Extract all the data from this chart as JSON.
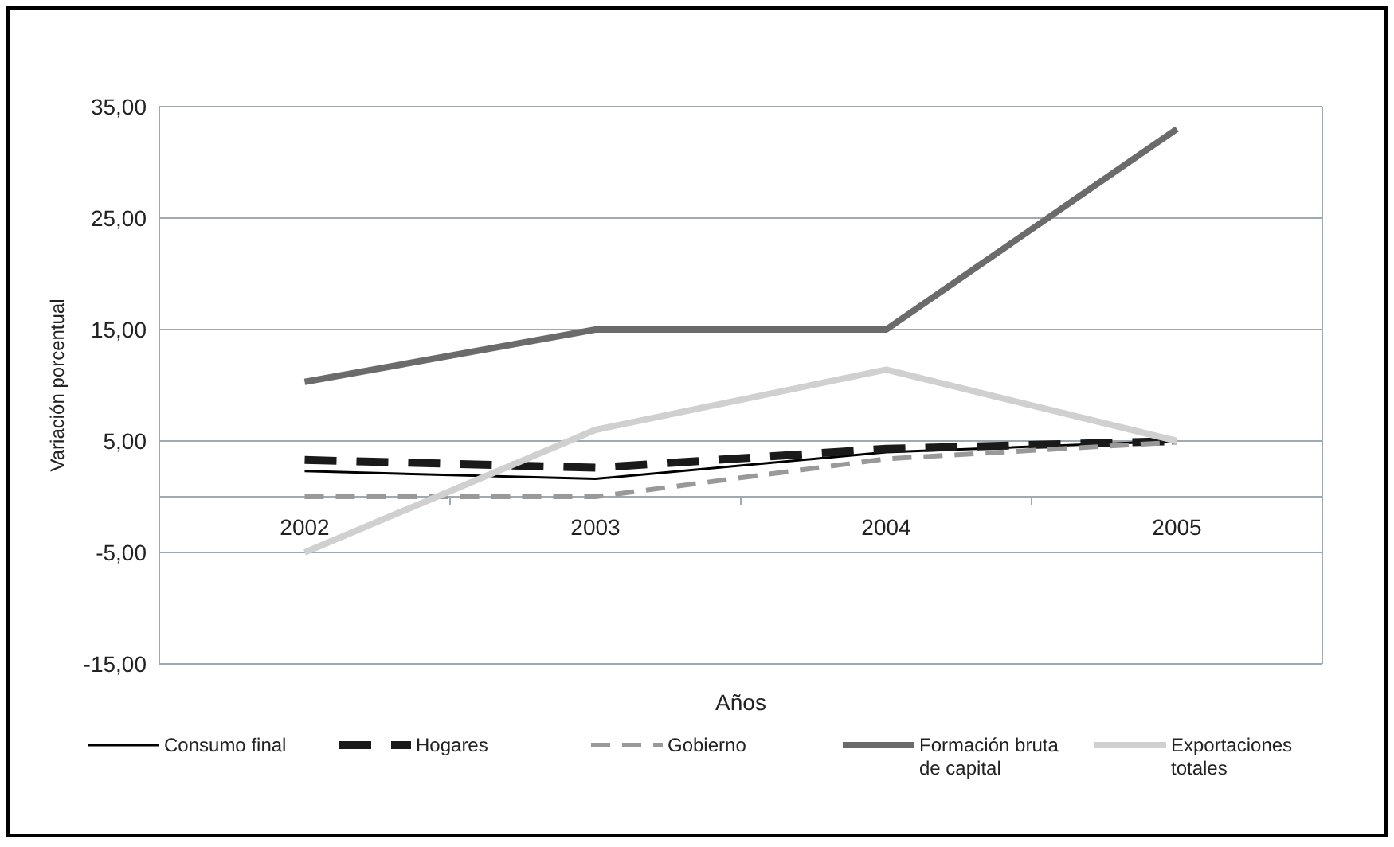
{
  "chart_data": {
    "type": "line",
    "xlabel": "Años",
    "ylabel": "Variación porcentual",
    "categories": [
      "2002",
      "2003",
      "2004",
      "2005"
    ],
    "ylim": [
      -15,
      35
    ],
    "yticks": [
      {
        "value": -15,
        "label": "-15,00"
      },
      {
        "value": -5,
        "label": "-5,00"
      },
      {
        "value": 5,
        "label": "5,00"
      },
      {
        "value": 15,
        "label": "15,00"
      },
      {
        "value": 25,
        "label": "25,00"
      },
      {
        "value": 35,
        "label": "35,00"
      }
    ],
    "grid": "y",
    "legend": "bottom",
    "series": [
      {
        "name": "Consumo final",
        "color": "#000000",
        "line_style": "solid",
        "values": [
          2.3,
          1.6,
          4.0,
          5.0
        ]
      },
      {
        "name": "Hogares",
        "color": "#1a1a1a",
        "line_style": "dashed",
        "values": [
          3.3,
          2.6,
          4.3,
          5.0
        ]
      },
      {
        "name": "Gobierno",
        "color": "#999999",
        "line_style": "dashed",
        "values": [
          0,
          0,
          3.4,
          4.9
        ]
      },
      {
        "name": "Formación bruta de capital",
        "color": "#6b6b6b",
        "line_style": "solid",
        "values": [
          10.3,
          15,
          15,
          33
        ]
      },
      {
        "name": "Exportaciones totales",
        "color": "#d0d0d0",
        "line_style": "solid",
        "values": [
          -5,
          6,
          11.4,
          5
        ]
      }
    ]
  }
}
